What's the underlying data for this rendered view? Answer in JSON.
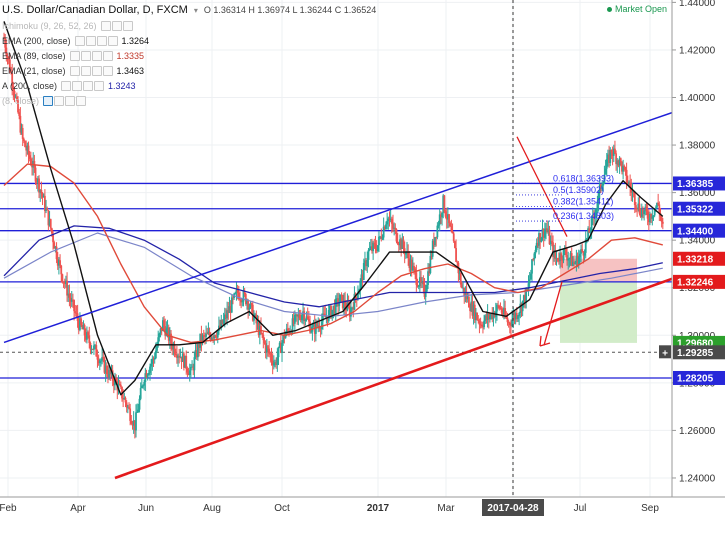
{
  "header": {
    "symbol": "U.S. Dollar/Canadian Dollar, D, FXCM",
    "open": "O 1.36314",
    "high": "H 1.36974",
    "low": "L 1.36244",
    "close": "C 1.36524",
    "market_status": "Market Open"
  },
  "indicators": [
    {
      "label": "Ichimoku (9, 26, 52, 26)",
      "value": "",
      "visible": false
    },
    {
      "label": "EMA (200, close)",
      "value": "1.3264",
      "visible": true
    },
    {
      "label": "EMA (89, close)",
      "value": "1.3335",
      "visible": true
    },
    {
      "label": "EMA (21, close)",
      "value": "1.3463",
      "visible": true
    },
    {
      "label": "A (200, close)",
      "value": "1.3243",
      "visible": true
    },
    {
      "label": "(8, close)",
      "value": "",
      "visible": false
    }
  ],
  "colors": {
    "bull": "#26a69a",
    "bear": "#ef5350",
    "blue_line": "#1f1fd8",
    "red_line": "#e31a1c",
    "ema200": "#2323a8",
    "ema89": "#e04a3a",
    "ema21": "#111111",
    "sma200": "#7b85c9",
    "tag_blue": "#2727d9",
    "tag_red": "#e31a1c",
    "tag_green": "#2ca02c",
    "tag_grey": "#4a4a4a"
  },
  "icons": [
    "chevron-down-icon",
    "eye-icon",
    "gear-icon",
    "close-icon",
    "plus-icon"
  ],
  "chart_data": {
    "type": "candlestick",
    "title": "U.S. Dollar/Canadian Dollar, D, FXCM",
    "y_axis": {
      "ylim": [
        1.232,
        1.441
      ],
      "ticks": [
        "1.44000",
        "1.42000",
        "1.40000",
        "1.38000",
        "1.36000",
        "1.34000",
        "1.32000",
        "1.30000",
        "1.28000",
        "1.26000",
        "1.24000"
      ],
      "position": "right"
    },
    "x_axis": {
      "labels": [
        "Feb",
        "Apr",
        "Jun",
        "Aug",
        "Oct",
        "2017",
        "Mar",
        "2017-04-28",
        "Jul",
        "Sep"
      ],
      "cursor_label": "2017-04-28"
    },
    "grid": true,
    "close_path": [
      [
        0,
        1.425
      ],
      [
        8,
        1.405
      ],
      [
        16,
        1.382
      ],
      [
        24,
        1.372
      ],
      [
        32,
        1.36
      ],
      [
        40,
        1.345
      ],
      [
        48,
        1.328
      ],
      [
        56,
        1.316
      ],
      [
        64,
        1.305
      ],
      [
        72,
        1.298
      ],
      [
        80,
        1.292
      ],
      [
        88,
        1.285
      ],
      [
        96,
        1.28
      ],
      [
        104,
        1.272
      ],
      [
        112,
        1.262
      ],
      [
        120,
        1.283
      ],
      [
        128,
        1.29
      ],
      [
        136,
        1.305
      ],
      [
        144,
        1.296
      ],
      [
        152,
        1.291
      ],
      [
        160,
        1.284
      ],
      [
        168,
        1.298
      ],
      [
        176,
        1.3
      ],
      [
        184,
        1.302
      ],
      [
        192,
        1.31
      ],
      [
        200,
        1.318
      ],
      [
        208,
        1.315
      ],
      [
        216,
        1.305
      ],
      [
        224,
        1.295
      ],
      [
        232,
        1.288
      ],
      [
        240,
        1.3
      ],
      [
        248,
        1.305
      ],
      [
        256,
        1.31
      ],
      [
        264,
        1.302
      ],
      [
        272,
        1.306
      ],
      [
        280,
        1.31
      ],
      [
        288,
        1.315
      ],
      [
        296,
        1.31
      ],
      [
        304,
        1.32
      ],
      [
        312,
        1.335
      ],
      [
        320,
        1.338
      ],
      [
        328,
        1.35
      ],
      [
        336,
        1.342
      ],
      [
        344,
        1.335
      ],
      [
        352,
        1.325
      ],
      [
        360,
        1.318
      ],
      [
        368,
        1.34
      ],
      [
        376,
        1.356
      ],
      [
        384,
        1.34
      ],
      [
        392,
        1.32
      ],
      [
        400,
        1.312
      ],
      [
        408,
        1.305
      ],
      [
        416,
        1.308
      ],
      [
        424,
        1.312
      ],
      [
        432,
        1.305
      ],
      [
        440,
        1.31
      ],
      [
        448,
        1.318
      ],
      [
        456,
        1.34
      ],
      [
        464,
        1.345
      ],
      [
        472,
        1.332
      ],
      [
        480,
        1.335
      ],
      [
        488,
        1.33
      ],
      [
        496,
        1.336
      ],
      [
        504,
        1.348
      ],
      [
        512,
        1.365
      ],
      [
        520,
        1.378
      ],
      [
        528,
        1.372
      ],
      [
        536,
        1.362
      ],
      [
        544,
        1.353
      ],
      [
        552,
        1.35
      ],
      [
        560,
        1.355
      ],
      [
        564,
        1.345
      ]
    ],
    "ema21_path": [
      [
        0,
        1.432
      ],
      [
        20,
        1.405
      ],
      [
        40,
        1.37
      ],
      [
        60,
        1.338
      ],
      [
        80,
        1.3
      ],
      [
        100,
        1.275
      ],
      [
        112,
        1.281
      ],
      [
        130,
        1.296
      ],
      [
        150,
        1.296
      ],
      [
        170,
        1.297
      ],
      [
        190,
        1.305
      ],
      [
        210,
        1.31
      ],
      [
        230,
        1.3
      ],
      [
        250,
        1.302
      ],
      [
        270,
        1.306
      ],
      [
        290,
        1.31
      ],
      [
        310,
        1.322
      ],
      [
        330,
        1.335
      ],
      [
        350,
        1.335
      ],
      [
        370,
        1.335
      ],
      [
        390,
        1.328
      ],
      [
        410,
        1.31
      ],
      [
        430,
        1.308
      ],
      [
        450,
        1.315
      ],
      [
        470,
        1.335
      ],
      [
        490,
        1.338
      ],
      [
        500,
        1.34
      ],
      [
        515,
        1.355
      ],
      [
        530,
        1.365
      ],
      [
        545,
        1.358
      ],
      [
        564,
        1.35
      ]
    ],
    "ema89_path": [
      [
        0,
        1.363
      ],
      [
        20,
        1.372
      ],
      [
        40,
        1.371
      ],
      [
        60,
        1.364
      ],
      [
        80,
        1.35
      ],
      [
        100,
        1.33
      ],
      [
        120,
        1.312
      ],
      [
        140,
        1.3
      ],
      [
        160,
        1.297
      ],
      [
        180,
        1.298
      ],
      [
        200,
        1.3
      ],
      [
        220,
        1.302
      ],
      [
        240,
        1.3
      ],
      [
        260,
        1.302
      ],
      [
        280,
        1.305
      ],
      [
        300,
        1.31
      ],
      [
        320,
        1.318
      ],
      [
        340,
        1.325
      ],
      [
        360,
        1.328
      ],
      [
        380,
        1.33
      ],
      [
        400,
        1.326
      ],
      [
        420,
        1.32
      ],
      [
        440,
        1.318
      ],
      [
        460,
        1.32
      ],
      [
        480,
        1.326
      ],
      [
        500,
        1.332
      ],
      [
        520,
        1.34
      ],
      [
        540,
        1.341
      ],
      [
        564,
        1.338
      ]
    ],
    "ema200_path": [
      [
        0,
        1.325
      ],
      [
        30,
        1.34
      ],
      [
        60,
        1.346
      ],
      [
        90,
        1.345
      ],
      [
        120,
        1.34
      ],
      [
        150,
        1.332
      ],
      [
        180,
        1.322
      ],
      [
        210,
        1.318
      ],
      [
        240,
        1.314
      ],
      [
        270,
        1.312
      ],
      [
        300,
        1.315
      ],
      [
        330,
        1.318
      ],
      [
        360,
        1.318
      ],
      [
        390,
        1.318
      ],
      [
        420,
        1.318
      ],
      [
        450,
        1.32
      ],
      [
        480,
        1.323
      ],
      [
        510,
        1.326
      ],
      [
        540,
        1.328
      ],
      [
        564,
        1.3305
      ]
    ],
    "sma200_path": [
      [
        0,
        1.324
      ],
      [
        40,
        1.335
      ],
      [
        80,
        1.343
      ],
      [
        120,
        1.337
      ],
      [
        160,
        1.325
      ],
      [
        200,
        1.316
      ],
      [
        240,
        1.31
      ],
      [
        280,
        1.308
      ],
      [
        320,
        1.31
      ],
      [
        360,
        1.314
      ],
      [
        400,
        1.317
      ],
      [
        440,
        1.318
      ],
      [
        480,
        1.321
      ],
      [
        520,
        1.324
      ],
      [
        564,
        1.3282
      ]
    ],
    "horizontal_levels": [
      1.36385,
      1.35322,
      1.344,
      1.32246,
      1.28205
    ],
    "dashed_level": 1.29285,
    "fibonacci": [
      {
        "label": "0.618(1.36393)",
        "value": 1.36393
      },
      {
        "label": "0.5(1.35902)",
        "value": 1.35902
      },
      {
        "label": "0.382(1.35411)",
        "value": 1.35411
      },
      {
        "label": "0.236(1.34803)",
        "value": 1.34803
      }
    ],
    "price_tags": [
      {
        "text": "1.36385",
        "value": 1.36385,
        "color": "tag_blue"
      },
      {
        "text": "1.35322",
        "value": 1.35322,
        "color": "tag_blue"
      },
      {
        "text": "1.34400",
        "value": 1.344,
        "color": "tag_blue"
      },
      {
        "text": "1.33218",
        "value": 1.33218,
        "color": "tag_red"
      },
      {
        "text": "1.32246",
        "value": 1.32246,
        "color": "tag_red"
      },
      {
        "text": "1.29680",
        "value": 1.2968,
        "color": "tag_green"
      },
      {
        "text": "1.28205",
        "value": 1.28205,
        "color": "tag_blue"
      },
      {
        "text": "1.29285",
        "value": 1.29285,
        "color": "tag_grey"
      }
    ],
    "trend_channel_upper": [
      [
        0,
        1.297
      ],
      [
        580,
        1.395
      ]
    ],
    "trend_channel_lower": [
      [
        95,
        1.24
      ],
      [
        670,
        1.341
      ]
    ],
    "short_trade": {
      "entry": 1.32246,
      "stop": 1.33218,
      "target": 1.2968
    }
  }
}
